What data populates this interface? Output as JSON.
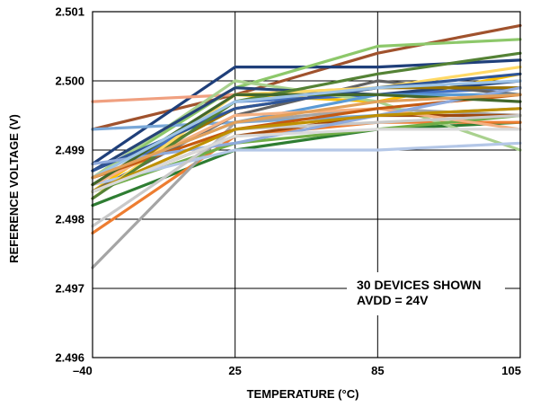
{
  "chart_data": {
    "type": "line",
    "title": "",
    "xlabel": "TEMPERATURE (°C)",
    "ylabel": "REFERENCE VOLTAGE (V)",
    "categories": [
      "–40",
      "25",
      "85",
      "105"
    ],
    "ylim": [
      2.496,
      2.501
    ],
    "yticks": [
      "2.501",
      "2.500",
      "2.499",
      "2.498",
      "2.497",
      "2.496"
    ],
    "grid": true,
    "annotation": [
      "30 DEVICES SHOWN",
      "AVDD = 24V"
    ],
    "series": [
      {
        "color": "#a0522d",
        "values": [
          2.4993,
          2.4998,
          2.5004,
          2.5008
        ]
      },
      {
        "color": "#1f3f7a",
        "values": [
          2.4988,
          2.5002,
          2.5002,
          2.5003
        ]
      },
      {
        "color": "#8dc86a",
        "values": [
          2.4986,
          2.4999,
          2.5005,
          2.5006
        ]
      },
      {
        "color": "#f0a080",
        "values": [
          2.4997,
          2.4998,
          2.4999,
          2.4999
        ]
      },
      {
        "color": "#7aa8d8",
        "values": [
          2.4993,
          2.4994,
          2.4995,
          2.4996
        ]
      },
      {
        "color": "#2e7d32",
        "values": [
          2.4982,
          2.499,
          2.4993,
          2.4994
        ]
      },
      {
        "color": "#ed7d31",
        "values": [
          2.4978,
          2.4992,
          2.4994,
          2.4994
        ]
      },
      {
        "color": "#a5a5a5",
        "values": [
          2.4973,
          2.4994,
          2.4996,
          2.4995
        ]
      },
      {
        "color": "#ffc000",
        "values": [
          2.4984,
          2.4998,
          2.4997,
          2.5001
        ]
      },
      {
        "color": "#4472c4",
        "values": [
          2.4985,
          2.4997,
          2.4998,
          2.4999
        ]
      },
      {
        "color": "#a9d18e",
        "values": [
          2.4986,
          2.5,
          2.4997,
          2.499
        ]
      },
      {
        "color": "#264478",
        "values": [
          2.4987,
          2.4999,
          2.4998,
          2.5
        ]
      },
      {
        "color": "#9e480e",
        "values": [
          2.4984,
          2.4992,
          2.4995,
          2.4995
        ]
      },
      {
        "color": "#636363",
        "values": [
          2.4984,
          2.4995,
          2.5,
          2.4998
        ]
      },
      {
        "color": "#997300",
        "values": [
          2.4985,
          2.4996,
          2.4999,
          2.4999
        ]
      },
      {
        "color": "#5b9bd5",
        "values": [
          2.4986,
          2.4994,
          2.4998,
          2.4998
        ]
      },
      {
        "color": "#70ad47",
        "values": [
          2.4984,
          2.4991,
          2.4993,
          2.4995
        ]
      },
      {
        "color": "#b4c7e7",
        "values": [
          2.4985,
          2.499,
          2.499,
          2.4991
        ]
      },
      {
        "color": "#f4b183",
        "values": [
          2.4985,
          2.4995,
          2.4996,
          2.4993
        ]
      },
      {
        "color": "#c9c9c9",
        "values": [
          2.4979,
          2.4993,
          2.4994,
          2.4995
        ]
      },
      {
        "color": "#ffd966",
        "values": [
          2.4983,
          2.4998,
          2.4999,
          2.5002
        ]
      },
      {
        "color": "#2f5597",
        "values": [
          2.4987,
          2.4996,
          2.4999,
          2.5001
        ]
      },
      {
        "color": "#c55a11",
        "values": [
          2.4986,
          2.4993,
          2.4996,
          2.4998
        ]
      },
      {
        "color": "#548235",
        "values": [
          2.4983,
          2.4997,
          2.5001,
          2.5004
        ]
      },
      {
        "color": "#8faadc",
        "values": [
          2.4988,
          2.4991,
          2.4995,
          2.4999
        ]
      },
      {
        "color": "#bf9000",
        "values": [
          2.4984,
          2.4993,
          2.4995,
          2.4996
        ]
      },
      {
        "color": "#d9d9d9",
        "values": [
          2.4984,
          2.4992,
          2.4993,
          2.4993
        ]
      },
      {
        "color": "#43682b",
        "values": [
          2.4985,
          2.4998,
          2.4998,
          2.4997
        ]
      },
      {
        "color": "#9dc3e6",
        "values": [
          2.4986,
          2.4997,
          2.4999,
          2.5
        ]
      },
      {
        "color": "#e2a05a",
        "values": [
          2.4986,
          2.4994,
          2.4997,
          2.4998
        ]
      }
    ]
  }
}
